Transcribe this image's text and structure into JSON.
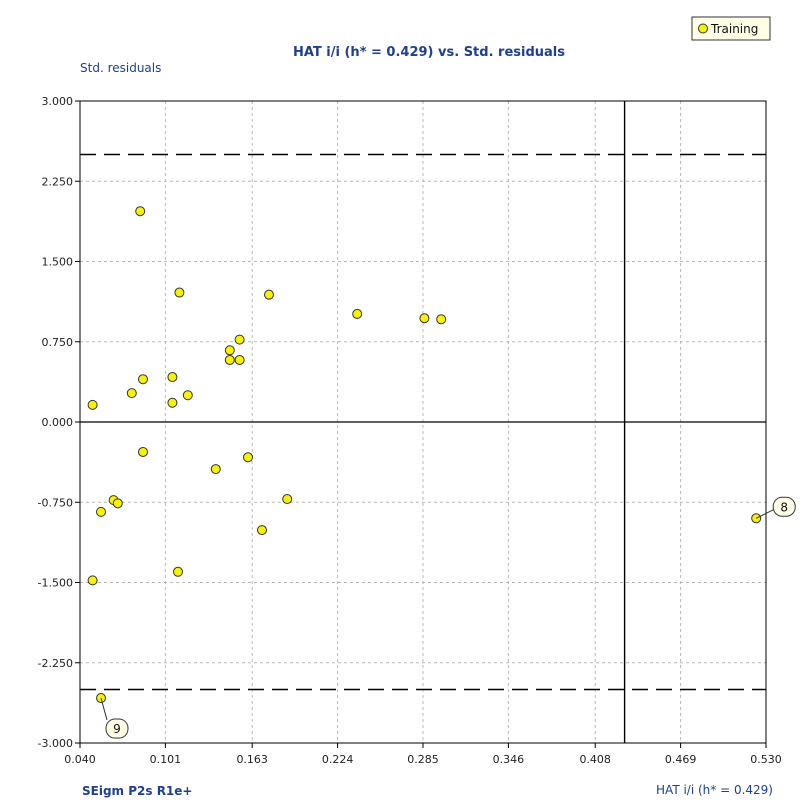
{
  "chart_data": {
    "type": "scatter",
    "title": "HAT i/i (h* = 0.429) vs. Std. residuals",
    "xlabel": "HAT i/i (h* = 0.429)",
    "ylabel": "Std. residuals",
    "footer": "SEigm  P2s  R1e+",
    "xlim": [
      0.04,
      0.53
    ],
    "ylim": [
      -3.0,
      3.0
    ],
    "x_ticks": [
      "0.040",
      "0.101",
      "0.163",
      "0.224",
      "0.285",
      "0.346",
      "0.408",
      "0.469",
      "0.530"
    ],
    "y_ticks": [
      "3.000",
      "2.250",
      "1.500",
      "0.750",
      "0.000",
      "-0.750",
      "-1.500",
      "-2.250",
      "-3.000"
    ],
    "grid": true,
    "legend_position": "top-right",
    "reference_lines": {
      "h_star": 0.429,
      "residual_limits": [
        2.5,
        -2.5
      ]
    },
    "series": [
      {
        "name": "Training",
        "color": "#f7f200",
        "points": [
          {
            "x": 0.083,
            "y": 1.97
          },
          {
            "x": 0.111,
            "y": 1.21
          },
          {
            "x": 0.175,
            "y": 1.19
          },
          {
            "x": 0.238,
            "y": 1.01
          },
          {
            "x": 0.286,
            "y": 0.97
          },
          {
            "x": 0.298,
            "y": 0.96
          },
          {
            "x": 0.154,
            "y": 0.77
          },
          {
            "x": 0.147,
            "y": 0.67
          },
          {
            "x": 0.147,
            "y": 0.58
          },
          {
            "x": 0.154,
            "y": 0.58
          },
          {
            "x": 0.106,
            "y": 0.42
          },
          {
            "x": 0.085,
            "y": 0.4
          },
          {
            "x": 0.077,
            "y": 0.27
          },
          {
            "x": 0.117,
            "y": 0.25
          },
          {
            "x": 0.106,
            "y": 0.18
          },
          {
            "x": 0.049,
            "y": 0.16
          },
          {
            "x": 0.085,
            "y": -0.28
          },
          {
            "x": 0.16,
            "y": -0.33
          },
          {
            "x": 0.137,
            "y": -0.44
          },
          {
            "x": 0.188,
            "y": -0.72
          },
          {
            "x": 0.064,
            "y": -0.73
          },
          {
            "x": 0.067,
            "y": -0.76
          },
          {
            "x": 0.055,
            "y": -0.84
          },
          {
            "x": 0.17,
            "y": -1.01
          },
          {
            "x": 0.523,
            "y": -0.9,
            "label": "8"
          },
          {
            "x": 0.11,
            "y": -1.4
          },
          {
            "x": 0.049,
            "y": -1.48
          },
          {
            "x": 0.055,
            "y": -2.58,
            "label": "9"
          }
        ]
      }
    ]
  }
}
